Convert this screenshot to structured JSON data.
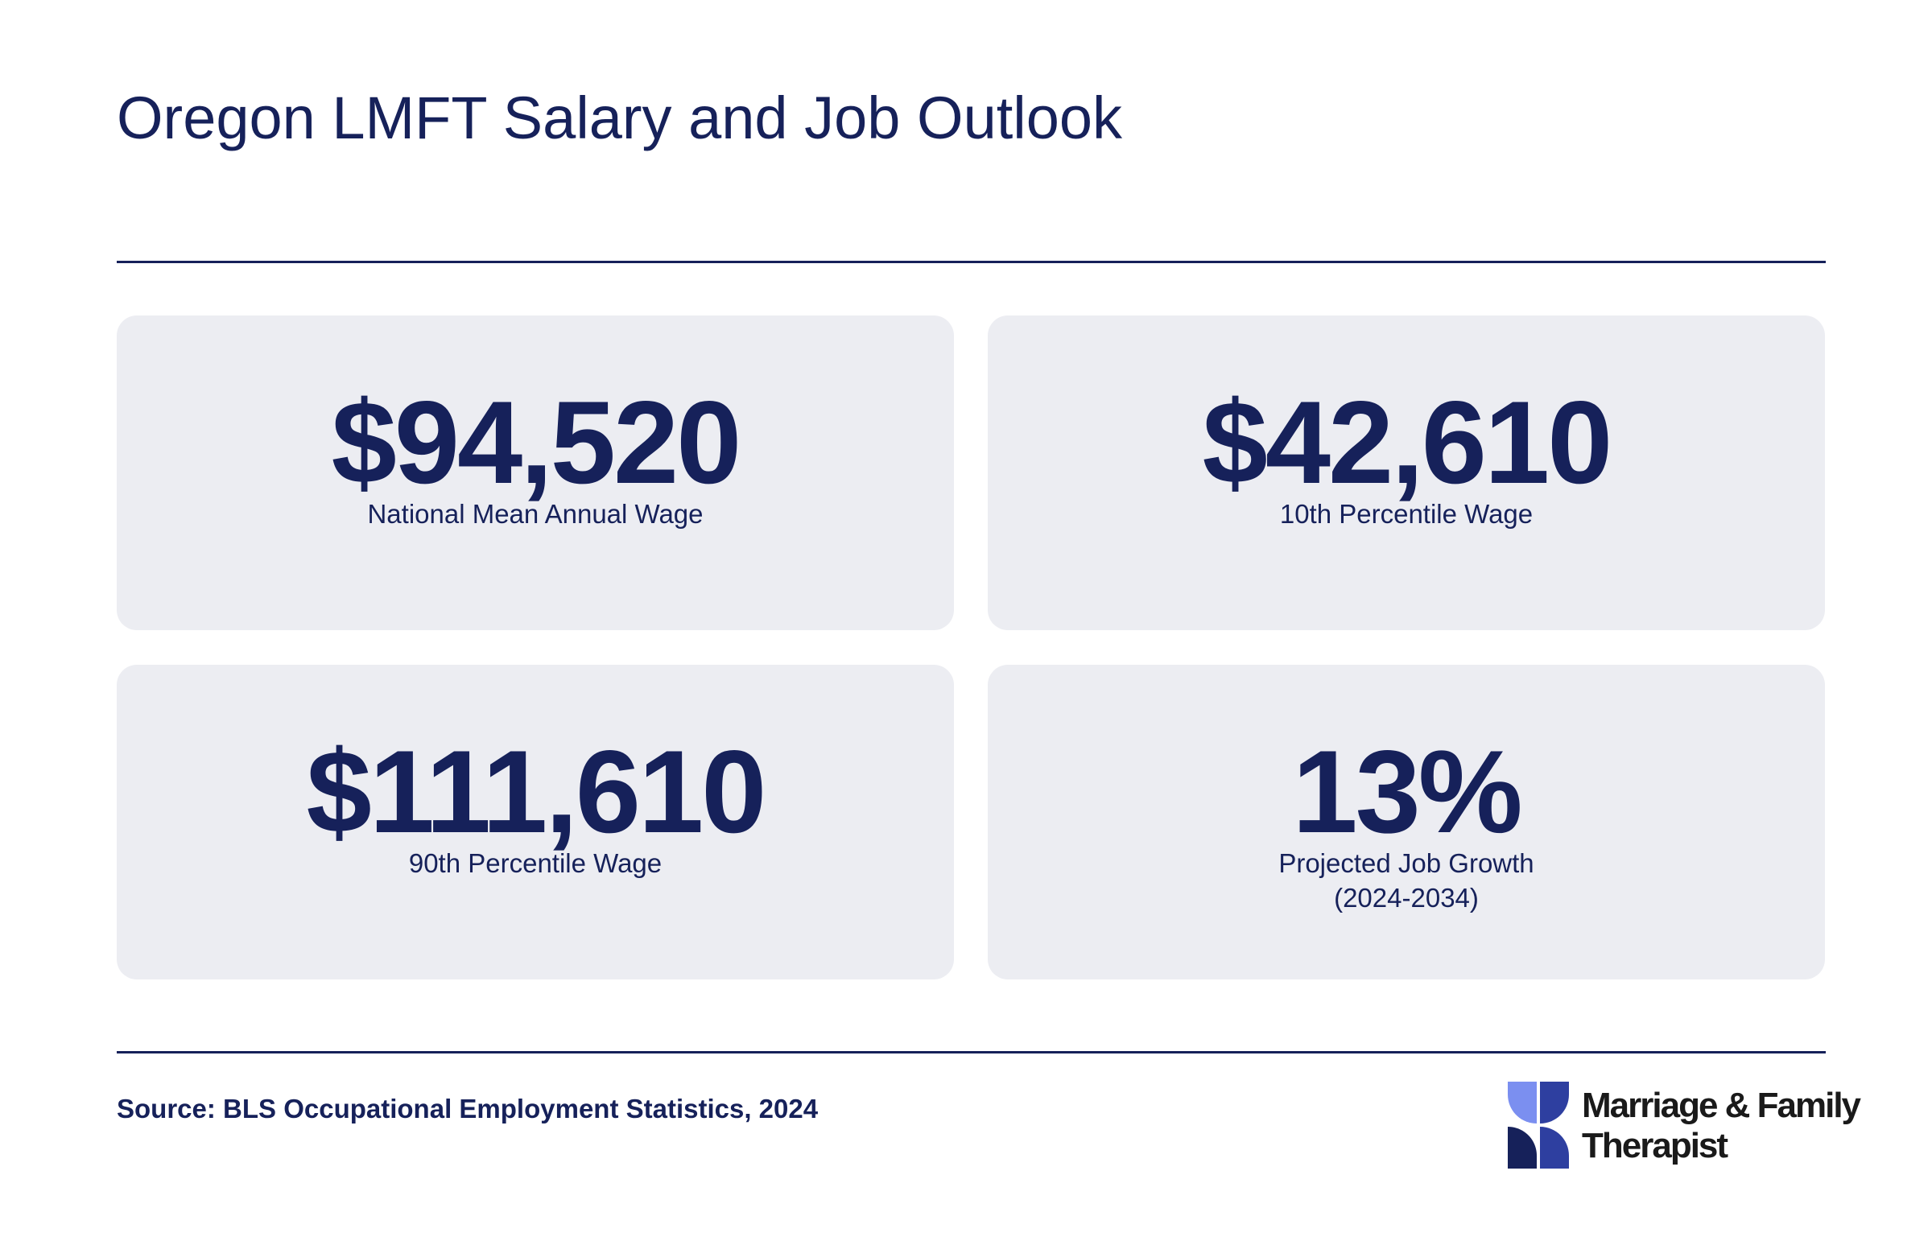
{
  "header": {
    "title": "Oregon LMFT Salary and Job Outlook"
  },
  "cards": [
    {
      "value": "$94,520",
      "label": [
        "National Mean Annual Wage"
      ]
    },
    {
      "value": "$42,610",
      "label": [
        "10th Percentile Wage"
      ]
    },
    {
      "value": "$111,610",
      "label": [
        "90th Percentile Wage"
      ]
    },
    {
      "value": "13%",
      "label": [
        "Projected Job Growth",
        "(2024-2034)"
      ]
    }
  ],
  "footer": {
    "source": "Source: BLS Occupational Employment Statistics, 2024",
    "logo": [
      "Marriage & Family",
      "Therapist"
    ]
  }
}
